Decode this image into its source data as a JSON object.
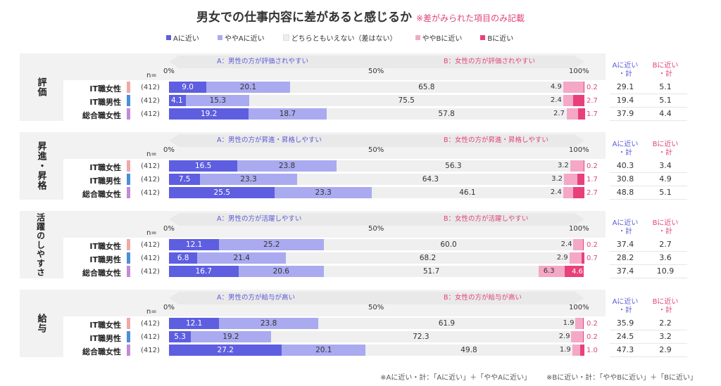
{
  "title": "男女での仕事内容に差があると感じるか",
  "title_note": "※差がみられた項目のみ記載",
  "legend": [
    {
      "label": "Aに近い",
      "color": "#5e5ee0"
    },
    {
      "label": "ややAに近い",
      "color": "#aaaaf0"
    },
    {
      "label": "どちらともいえない（差はない）",
      "color": "#efefef"
    },
    {
      "label": "ややBに近い",
      "color": "#f4a8c6"
    },
    {
      "label": "Bに近い",
      "color": "#e8407a"
    }
  ],
  "axis": {
    "n_label": "n=",
    "ticks": [
      "0%",
      "50%",
      "100%"
    ]
  },
  "summary_headers": {
    "a": "Aに近い\n・計",
    "b": "Bに近い\n・計"
  },
  "footnote": {
    "a": "※Aに近い・計：「Aに近い」＋「ややAに近い」",
    "b": "※Bに近い・計：「ややBに近い」＋「Bに近い」"
  },
  "row_colors": {
    "IT職女性": "#f2a8a8",
    "IT職男性": "#4a90d9",
    "総合職女性": "#c38ad8"
  },
  "chart_data": {
    "type": "bar",
    "stacked": "100%",
    "orientation": "horizontal",
    "xlim": [
      0,
      100
    ],
    "groups": [
      {
        "name": "評価",
        "a_label": "A：男性の方が評価されやすい",
        "b_label": "B：女性の方が評価されやすい",
        "rows": [
          {
            "label": "IT職女性",
            "n": "(412)",
            "values": [
              9.0,
              20.1,
              65.8,
              4.9,
              0.2
            ],
            "a_total": "29.1",
            "b_total": "5.1"
          },
          {
            "label": "IT職男性",
            "n": "(412)",
            "values": [
              4.1,
              15.3,
              75.5,
              2.4,
              2.7
            ],
            "a_total": "19.4",
            "b_total": "5.1"
          },
          {
            "label": "総合職女性",
            "n": "(412)",
            "values": [
              19.2,
              18.7,
              57.8,
              2.7,
              1.7
            ],
            "a_total": "37.9",
            "b_total": "4.4"
          }
        ]
      },
      {
        "name": "昇進・昇格",
        "a_label": "A：男性の方が昇進・昇格しやすい",
        "b_label": "B：女性の方が昇進・昇格しやすい",
        "rows": [
          {
            "label": "IT職女性",
            "n": "(412)",
            "values": [
              16.5,
              23.8,
              56.3,
              3.2,
              0.2
            ],
            "a_total": "40.3",
            "b_total": "3.4"
          },
          {
            "label": "IT職男性",
            "n": "(412)",
            "values": [
              7.5,
              23.3,
              64.3,
              3.2,
              1.7
            ],
            "a_total": "30.8",
            "b_total": "4.9"
          },
          {
            "label": "総合職女性",
            "n": "(412)",
            "values": [
              25.5,
              23.3,
              46.1,
              2.4,
              2.7
            ],
            "a_total": "48.8",
            "b_total": "5.1"
          }
        ]
      },
      {
        "name": "活躍のしやすさ",
        "a_label": "A：男性の方が活躍しやすい",
        "b_label": "B：女性の方が活躍しやすい",
        "rows": [
          {
            "label": "IT職女性",
            "n": "(412)",
            "values": [
              12.1,
              25.2,
              60.0,
              2.4,
              0.2
            ],
            "a_total": "37.4",
            "b_total": "2.7"
          },
          {
            "label": "IT職男性",
            "n": "(412)",
            "values": [
              6.8,
              21.4,
              68.2,
              2.9,
              0.7
            ],
            "a_total": "28.2",
            "b_total": "3.6"
          },
          {
            "label": "総合職女性",
            "n": "(412)",
            "values": [
              16.7,
              20.6,
              51.7,
              6.3,
              4.6
            ],
            "a_total": "37.4",
            "b_total": "10.9"
          }
        ]
      },
      {
        "name": "給与",
        "a_label": "A：男性の方が給与が高い",
        "b_label": "B：女性の方が給与が高い",
        "rows": [
          {
            "label": "IT職女性",
            "n": "(412)",
            "values": [
              12.1,
              23.8,
              61.9,
              1.9,
              0.2
            ],
            "a_total": "35.9",
            "b_total": "2.2"
          },
          {
            "label": "IT職男性",
            "n": "(412)",
            "values": [
              5.3,
              19.2,
              72.3,
              2.9,
              0.2
            ],
            "a_total": "24.5",
            "b_total": "3.2"
          },
          {
            "label": "総合職女性",
            "n": "(412)",
            "values": [
              27.2,
              20.1,
              49.8,
              1.9,
              1.0
            ],
            "a_total": "47.3",
            "b_total": "2.9"
          }
        ]
      }
    ]
  }
}
